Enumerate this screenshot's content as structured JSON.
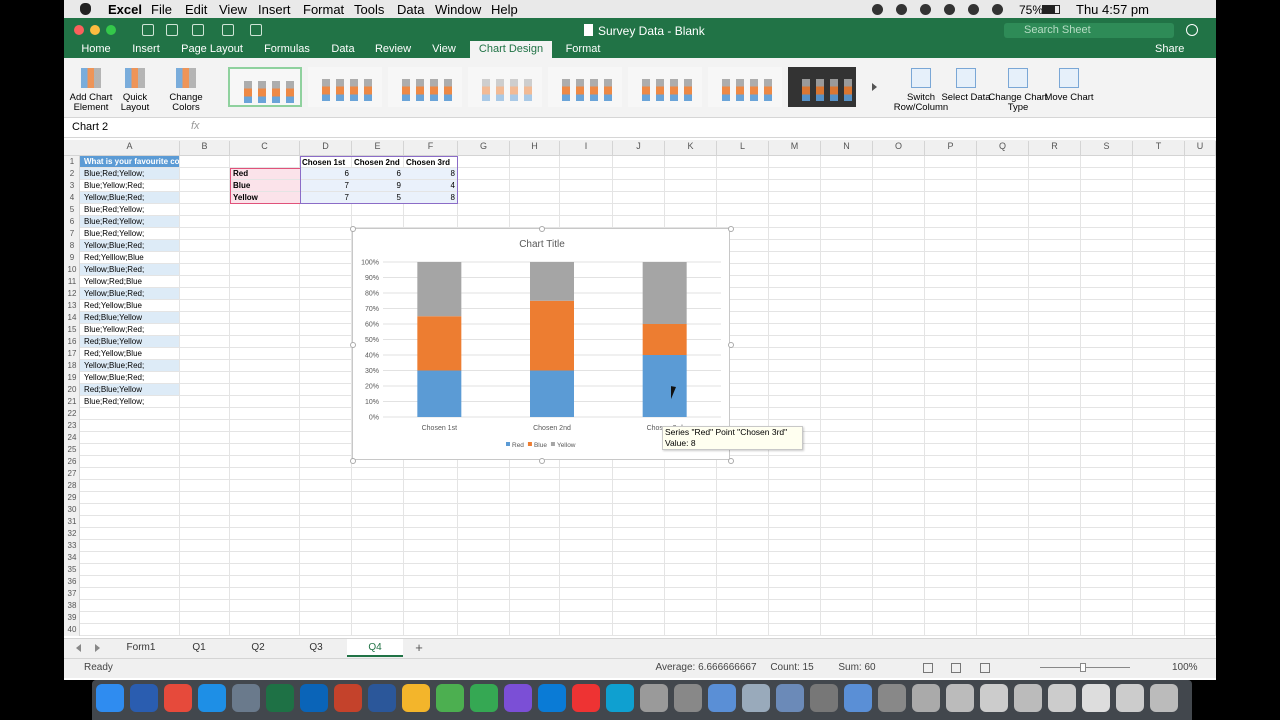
{
  "menu_bar": {
    "app": "Excel",
    "items": [
      "File",
      "Edit",
      "View",
      "Insert",
      "Format",
      "Tools",
      "Data",
      "Window",
      "Help"
    ],
    "battery": "75%",
    "clock": "Thu 4:57 pm"
  },
  "title_bar": {
    "title": "Survey Data - Blank",
    "search": "Search Sheet"
  },
  "ribbon_tabs": {
    "tabs": [
      "Home",
      "Insert",
      "Page Layout",
      "Formulas",
      "Data",
      "Review",
      "View",
      "Chart Design",
      "Format"
    ],
    "active": 7,
    "share": "Share"
  },
  "ribbon": {
    "left": [
      "Add Chart Element",
      "Quick Layout",
      "Change Colors"
    ],
    "right": [
      "Switch Row/Column",
      "Select Data",
      "Change Chart Type",
      "Move Chart"
    ]
  },
  "formula_bar": {
    "name_box": "Chart 2",
    "fx": "fx"
  },
  "sheet": {
    "columns": [
      "A",
      "B",
      "C",
      "D",
      "E",
      "F",
      "G",
      "H",
      "I",
      "J",
      "K",
      "L",
      "M",
      "N",
      "O",
      "P",
      "Q",
      "R",
      "S",
      "T",
      "U"
    ],
    "rows": [
      1,
      2,
      3,
      4,
      5,
      6,
      7,
      8,
      9,
      10,
      11,
      12,
      13,
      14,
      15,
      16,
      17,
      18,
      19,
      20,
      21,
      22,
      23,
      24,
      25,
      26,
      27,
      28,
      29,
      30,
      31,
      32,
      33,
      34,
      35,
      36,
      37,
      38,
      39,
      40
    ],
    "column_a": [
      "What is your favourite co",
      "Blue;Red;Yellow;",
      "Blue;Yellow;Red;",
      "Yellow;Blue;Red;",
      "Blue;Red;Yellow;",
      "Blue;Red;Yellow;",
      "Blue;Red;Yellow;",
      "Yellow;Blue;Red;",
      "Red;Yelllow;Blue",
      "Yellow;Blue;Red;",
      "Yellow;Red;Blue",
      "Yellow;Blue;Red;",
      "Red;Yellow;Blue",
      "Red;Blue;Yellow",
      "Blue;Yellow;Red;",
      "Red;Blue;Yellow",
      "Red;Yellow;Blue",
      "Yellow;Blue;Red;",
      "Yellow;Blue;Red;",
      "Red;Blue;Yellow",
      "Blue;Red;Yellow;"
    ],
    "table": {
      "header": [
        "Chosen 1st",
        "Chosen 2nd",
        "Chosen 3rd"
      ],
      "rows": [
        [
          "Red",
          6,
          6,
          8
        ],
        [
          "Blue",
          7,
          9,
          4
        ],
        [
          "Yellow",
          7,
          5,
          8
        ]
      ]
    }
  },
  "chart_data": {
    "type": "stacked-percent-bar",
    "title": "Chart Title",
    "categories": [
      "Chosen 1st",
      "Chosen 2nd",
      "Chosen 3rd"
    ],
    "series": [
      {
        "name": "Red",
        "color": "#5b9bd5",
        "values": [
          6,
          6,
          8
        ]
      },
      {
        "name": "Blue",
        "color": "#ed7d31",
        "values": [
          7,
          9,
          4
        ]
      },
      {
        "name": "Yellow",
        "color": "#a5a5a5",
        "values": [
          7,
          5,
          8
        ]
      }
    ],
    "ylim": [
      0,
      100
    ],
    "yticks": [
      {
        "value": 0,
        "label": "0%"
      },
      {
        "value": 10,
        "label": "10%"
      },
      {
        "value": 20,
        "label": "20%"
      },
      {
        "value": 30,
        "label": "30%"
      },
      {
        "value": 40,
        "label": "40%"
      },
      {
        "value": 50,
        "label": "50%"
      },
      {
        "value": 60,
        "label": "60%"
      },
      {
        "value": 70,
        "label": "70%"
      },
      {
        "value": 80,
        "label": "80%"
      },
      {
        "value": 90,
        "label": "90%"
      },
      {
        "value": 100,
        "label": "100%"
      }
    ],
    "grid": true,
    "legend": "bottom"
  },
  "tooltip": {
    "line1": "Series \"Red\" Point \"Chosen 3rd\"",
    "line2": "Value: 8"
  },
  "sheet_tabs": {
    "tabs": [
      "Form1",
      "Q1",
      "Q2",
      "Q3",
      "Q4"
    ],
    "active": 4,
    "add": "+"
  },
  "status_bar": {
    "status": "Ready",
    "average": "Average: 6.666666667",
    "count": "Count: 15",
    "sum": "Sum: 60",
    "zoom": "100%"
  }
}
